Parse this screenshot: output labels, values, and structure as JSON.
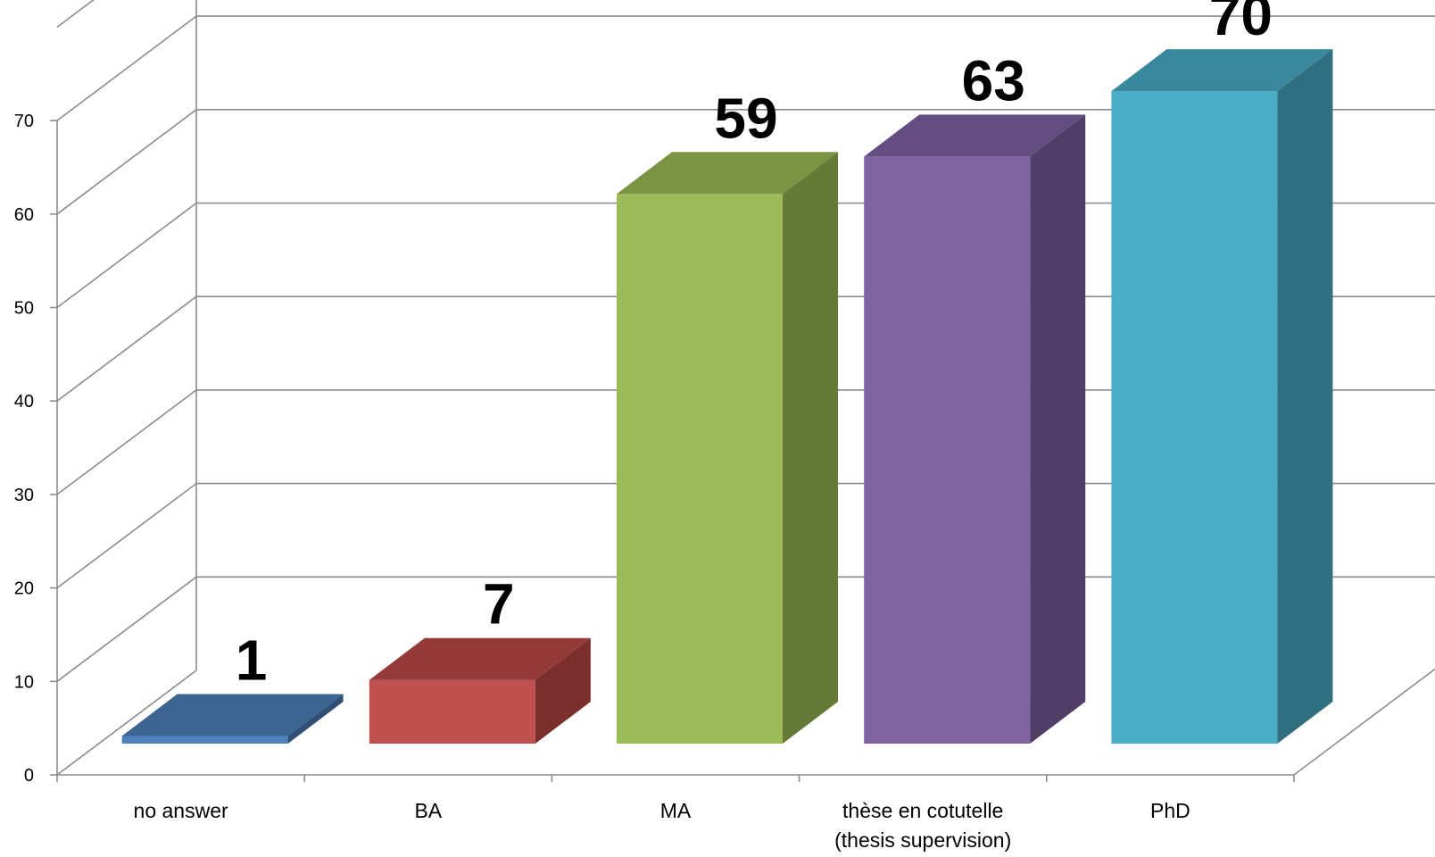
{
  "chart_data": {
    "type": "bar",
    "categories": [
      [
        "no answer"
      ],
      [
        "BA"
      ],
      [
        "MA"
      ],
      [
        "thèse en cotutelle",
        "(thesis supervision)"
      ],
      [
        "PhD"
      ]
    ],
    "values": [
      1,
      7,
      59,
      63,
      70
    ],
    "data_labels": [
      "1",
      "7",
      "59",
      "63",
      "70"
    ],
    "ylim": [
      0,
      70
    ],
    "yticks": [
      "0",
      "10",
      "20",
      "30",
      "40",
      "50",
      "60",
      "70"
    ],
    "grid": true,
    "legend": "none",
    "colors": [
      {
        "front": "#4f81bd",
        "top": "#3d6591",
        "side": "#2f4f74"
      },
      {
        "front": "#c0504d",
        "top": "#943b39",
        "side": "#7a2f2d"
      },
      {
        "front": "#9bbb59",
        "top": "#7a9443",
        "side": "#647a36"
      },
      {
        "front": "#8064a2",
        "top": "#644d80",
        "side": "#513e67"
      },
      {
        "front": "#4bacc6",
        "top": "#3a889d",
        "side": "#2f6f80"
      }
    ]
  }
}
